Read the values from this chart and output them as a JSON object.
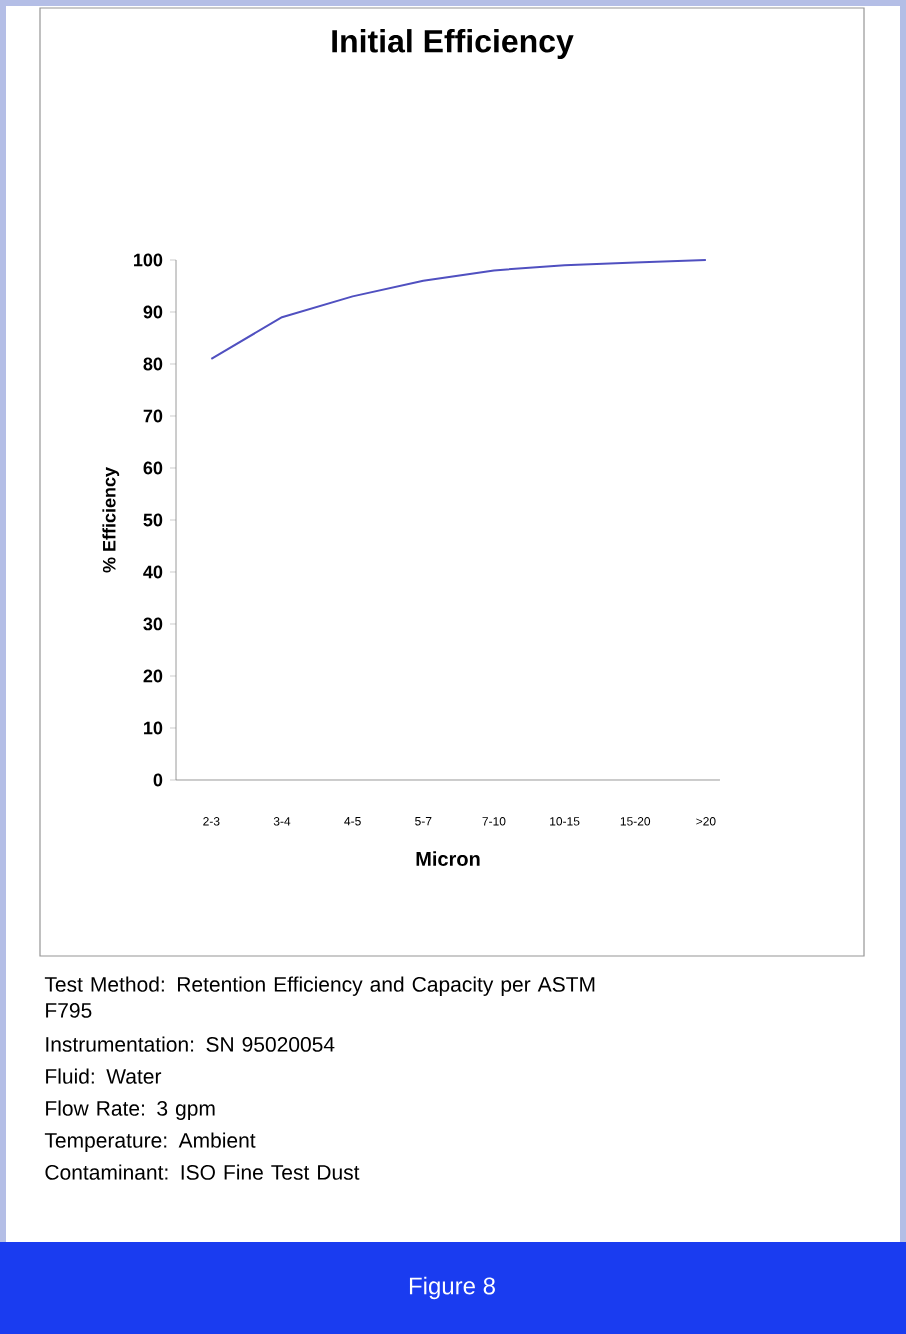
{
  "chart_data": {
    "type": "line",
    "title": "Initial Efficiency",
    "xlabel": "Micron",
    "ylabel": "% Efficiency",
    "categories": [
      "2-3",
      "3-4",
      "4-5",
      "5-7",
      "7-10",
      "10-15",
      "15-20",
      ">20"
    ],
    "series": [
      {
        "color": "#5050c0",
        "values": [
          81,
          89,
          93,
          96,
          98,
          99,
          99.5,
          100
        ]
      }
    ],
    "ylim": [
      0,
      100
    ],
    "yticks": [
      0,
      10,
      20,
      30,
      40,
      50,
      60,
      70,
      80,
      90,
      100
    ],
    "annotations": [
      "Test Method: Retention Efficiency and Capacity per ASTM F795",
      "Instrumentation: SN 95020054",
      "Fluid: Water",
      "Flow Rate: 3 gpm",
      "Temperature: Ambient",
      "Contaminant: ISO Fine Test Dust",
      "Figure 8"
    ]
  }
}
